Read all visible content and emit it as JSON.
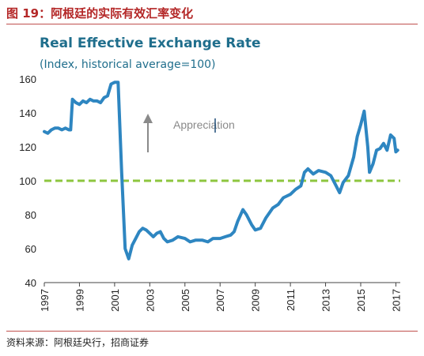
{
  "figure": {
    "title": "图 19：阿根廷的实际有效汇率变化",
    "source": "资料来源：阿根廷央行，招商证券"
  },
  "chart_data": {
    "type": "line",
    "title": "Real Effective Exchange Rate",
    "subtitle": "(Index, historical average=100)",
    "xlim": [
      1997,
      2017.25
    ],
    "ylim": [
      40,
      160
    ],
    "x_ticks": [
      "1997",
      "1999",
      "2001",
      "2003",
      "2005",
      "2007",
      "2009",
      "2011",
      "2013",
      "2015",
      "2017"
    ],
    "y_ticks": [
      "40",
      "60",
      "80",
      "100",
      "120",
      "140",
      "160"
    ],
    "reference_line": {
      "y": 100,
      "style": "dashed",
      "color": "#8dc63f"
    },
    "annotation": {
      "text": "Appreciation",
      "arrow": "up"
    },
    "line_color": "#2e86c1",
    "series": [
      {
        "x": [
          1997.0,
          1997.2,
          1997.4,
          1997.6,
          1997.8,
          1998.0,
          1998.2,
          1998.4,
          1998.5,
          1998.6,
          1998.8,
          1999.0,
          1999.2,
          1999.4,
          1999.6,
          1999.8,
          2000.0,
          2000.2,
          2000.4,
          2000.6,
          2000.8,
          2001.0,
          2001.2,
          2001.4,
          2001.6,
          2001.8,
          2002.0,
          2002.2,
          2002.4,
          2002.6,
          2002.8,
          2003.0,
          2003.2,
          2003.4,
          2003.6,
          2003.8,
          2004.0,
          2004.3,
          2004.6,
          2005.0,
          2005.3,
          2005.6,
          2006.0,
          2006.3,
          2006.6,
          2007.0,
          2007.3,
          2007.6,
          2007.8,
          2008.0,
          2008.3,
          2008.5,
          2008.8,
          2009.0,
          2009.3,
          2009.6,
          2010.0,
          2010.3,
          2010.6,
          2011.0,
          2011.3,
          2011.6,
          2011.8,
          2012.0,
          2012.3,
          2012.6,
          2013.0,
          2013.3,
          2013.6,
          2013.8,
          2014.0,
          2014.3,
          2014.6,
          2014.8,
          2015.0,
          2015.2,
          2015.4,
          2015.5,
          2015.7,
          2015.9,
          2016.1,
          2016.3,
          2016.5,
          2016.7,
          2016.9,
          2017.0,
          2017.1
        ],
        "y": [
          129,
          128,
          130,
          131,
          131,
          130,
          131,
          130,
          130,
          148,
          146,
          145,
          147,
          146,
          148,
          147,
          147,
          146,
          149,
          150,
          157,
          158,
          158,
          105,
          60,
          54,
          62,
          66,
          70,
          72,
          71,
          69,
          67,
          69,
          70,
          66,
          64,
          65,
          67,
          66,
          64,
          65,
          65,
          64,
          66,
          66,
          67,
          68,
          70,
          76,
          83,
          80,
          74,
          71,
          72,
          78,
          84,
          86,
          90,
          92,
          95,
          97,
          105,
          107,
          104,
          106,
          105,
          103,
          97,
          93,
          99,
          103,
          114,
          126,
          133,
          141,
          120,
          105,
          110,
          118,
          119,
          122,
          118,
          127,
          125,
          117,
          118
        ]
      }
    ]
  }
}
